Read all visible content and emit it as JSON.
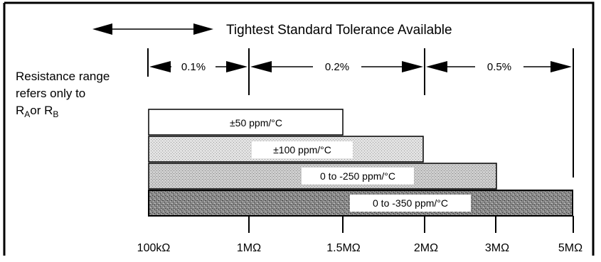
{
  "header": {
    "title": "Tightest Standard Tolerance Available"
  },
  "tolerances": [
    "0.1%",
    "0.2%",
    "0.5%"
  ],
  "side_note": {
    "line1": "Resistance range",
    "line2": "refers only to",
    "ra_prefix": "R",
    "ra_sub": "A",
    "or_text": "or ",
    "rb_prefix": "R",
    "rb_sub": "B"
  },
  "bars": [
    {
      "label": "±50 ppm/°C",
      "from": "100kΩ",
      "to": "1.5MΩ"
    },
    {
      "label": "±100 ppm/°C",
      "from": "100kΩ",
      "to": "2MΩ"
    },
    {
      "label": "0 to -250 ppm/°C",
      "from": "100kΩ",
      "to": "3MΩ"
    },
    {
      "label": "0 to -350 ppm/°C",
      "from": "100kΩ",
      "to": "5MΩ"
    }
  ],
  "axis_ticks": [
    "100kΩ",
    "1MΩ",
    "1.5MΩ",
    "2MΩ",
    "3MΩ",
    "5MΩ"
  ]
}
